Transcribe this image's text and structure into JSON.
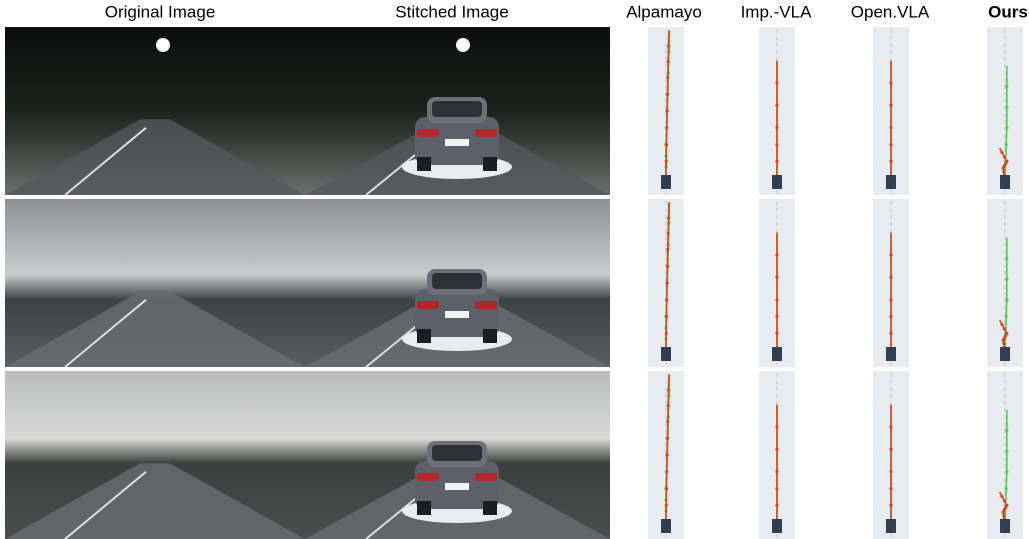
{
  "header": {
    "columns": [
      "Original Image",
      "Stitched Image",
      "Alpamayo",
      "Imp.-VLA",
      "Open.VLA",
      "Ours"
    ]
  }
}
